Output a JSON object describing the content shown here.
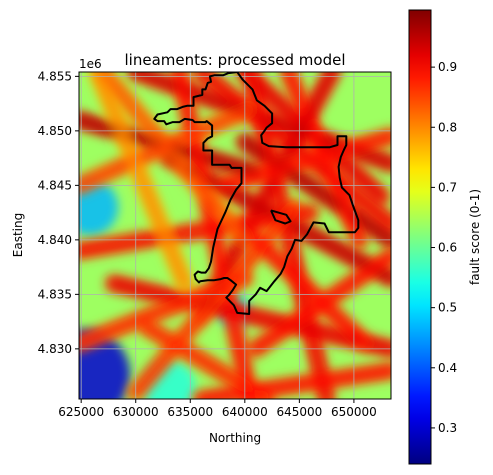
{
  "chart_data": {
    "type": "heatmap",
    "title": "lineaments: processed model",
    "xlabel": "Northing",
    "ylabel": "Easting",
    "y_offset_label": "1e6",
    "xlim": [
      624800,
      653400
    ],
    "ylim": [
      4825400,
      4855400
    ],
    "xticks": [
      625000,
      630000,
      635000,
      640000,
      645000,
      650000
    ],
    "xtick_labels": [
      "625000",
      "630000",
      "635000",
      "640000",
      "645000",
      "650000"
    ],
    "yticks": [
      4830000,
      4835000,
      4840000,
      4845000,
      4850000,
      4855000
    ],
    "ytick_labels": [
      "4.830",
      "4.835",
      "4.840",
      "4.845",
      "4.850",
      "4.855"
    ],
    "grid": true,
    "colormap": "jet",
    "colorbar": {
      "label": "fault score (0-1)",
      "range": [
        0.24,
        0.995
      ],
      "ticks": [
        0.3,
        0.4,
        0.5,
        0.6,
        0.7,
        0.8,
        0.9
      ],
      "tick_labels": [
        "0.3",
        "0.4",
        "0.5",
        "0.6",
        "0.7",
        "0.8",
        "0.9"
      ]
    },
    "background_field": {
      "base_score": 0.64,
      "low_zones": [
        {
          "x": 625300,
          "y": 4827600,
          "radius": 4200,
          "score": 0.3
        },
        {
          "x": 625800,
          "y": 4843000,
          "radius": 2600,
          "score": 0.47
        },
        {
          "x": 639000,
          "y": 4833500,
          "radius": 1600,
          "score": 0.52
        },
        {
          "x": 633000,
          "y": 4826500,
          "radius": 2500,
          "score": 0.55
        }
      ]
    },
    "lineaments": [
      {
        "x": [
          624800,
          641000
        ],
        "y": [
          4851000,
          4846200
        ],
        "score": 0.97
      },
      {
        "x": [
          630000,
          653400
        ],
        "y": [
          4855400,
          4847000
        ],
        "score": 0.95
      },
      {
        "x": [
          640000,
          652500
        ],
        "y": [
          4855400,
          4844000
        ],
        "score": 0.93
      },
      {
        "x": [
          633000,
          653400
        ],
        "y": [
          4847500,
          4836500
        ],
        "score": 0.96
      },
      {
        "x": [
          640000,
          653400
        ],
        "y": [
          4849000,
          4840000
        ],
        "score": 0.97
      },
      {
        "x": [
          636000,
          653400
        ],
        "y": [
          4855400,
          4841500
        ],
        "score": 0.92
      },
      {
        "x": [
          644000,
          650500
        ],
        "y": [
          4855400,
          4840000
        ],
        "score": 0.9
      },
      {
        "x": [
          648000,
          636000
        ],
        "y": [
          4855400,
          4833000
        ],
        "score": 0.94
      },
      {
        "x": [
          640500,
          647500
        ],
        "y": [
          4855400,
          4825400
        ],
        "score": 0.92
      },
      {
        "x": [
          634000,
          640500
        ],
        "y": [
          4855400,
          4825400
        ],
        "score": 0.9
      },
      {
        "x": [
          624800,
          646000
        ],
        "y": [
          4839000,
          4842500
        ],
        "score": 0.91
      },
      {
        "x": [
          628000,
          653400
        ],
        "y": [
          4836000,
          4830000
        ],
        "score": 0.93
      },
      {
        "x": [
          641000,
          653400
        ],
        "y": [
          4830000,
          4838500
        ],
        "score": 0.9
      },
      {
        "x": [
          624800,
          640000
        ],
        "y": [
          4830500,
          4836500
        ],
        "score": 0.88
      },
      {
        "x": [
          631000,
          642000
        ],
        "y": [
          4832000,
          4825400
        ],
        "score": 0.88
      },
      {
        "x": [
          636000,
          653400
        ],
        "y": [
          4825400,
          4828000
        ],
        "score": 0.9
      },
      {
        "x": [
          638000,
          653400
        ],
        "y": [
          4845000,
          4849500
        ],
        "score": 0.89
      },
      {
        "x": [
          627000,
          640000
        ],
        "y": [
          4855400,
          4840000
        ],
        "score": 0.84
      },
      {
        "x": [
          624800,
          640500
        ],
        "y": [
          4845000,
          4852000
        ],
        "score": 0.86
      },
      {
        "x": [
          630000,
          644500
        ],
        "y": [
          4826000,
          4843000
        ],
        "score": 0.87
      },
      {
        "x": [
          640000,
          651000
        ],
        "y": [
          4841000,
          4830500
        ],
        "score": 0.9
      },
      {
        "x": [
          626500,
          634500
        ],
        "y": [
          4855400,
          4836000
        ],
        "score": 0.8
      }
    ],
    "boundary": {
      "x": [
        639300,
        639800,
        640700,
        641100,
        641800,
        642500,
        642500,
        642000,
        641800,
        641500,
        641600,
        642200,
        643800,
        646300,
        647800,
        648500,
        648500,
        649300,
        649300,
        649100,
        648800,
        648600,
        648700,
        648900,
        649600,
        649900,
        650400,
        650400,
        650100,
        647700,
        647300,
        646300,
        645700,
        645200,
        644600,
        644300,
        643900,
        643600,
        643300,
        642700,
        642000,
        641400,
        641000,
        640400,
        640400,
        639300,
        639000,
        638700,
        638300,
        638600,
        638900,
        639200,
        638700,
        638400,
        638100,
        637800,
        637200,
        636600,
        635900,
        635800,
        635500,
        635400,
        635700,
        636000,
        636400,
        636700,
        636900,
        637100,
        637500,
        638200,
        638700,
        639200,
        639700,
        639700,
        639400,
        638800,
        638600,
        637000,
        637000,
        636200,
        636200,
        636600,
        637000,
        637000,
        636500,
        636400,
        635400,
        635200,
        634500,
        634000,
        633400,
        632800,
        632600,
        632000,
        631700,
        632000,
        632900,
        633200,
        633800,
        634300,
        634700,
        635300,
        635300,
        636100,
        636100,
        636400,
        636600,
        636900,
        636800,
        637200,
        637500,
        638000,
        638500,
        639300
      ],
      "y": [
        4855400,
        4854700,
        4853800,
        4852800,
        4852300,
        4851600,
        4850700,
        4850300,
        4850000,
        4849600,
        4848900,
        4848600,
        4848500,
        4848500,
        4848500,
        4848700,
        4849500,
        4849500,
        4848700,
        4848300,
        4847600,
        4846700,
        4845700,
        4844800,
        4844100,
        4843200,
        4841800,
        4841100,
        4840700,
        4840700,
        4841500,
        4841600,
        4840500,
        4839900,
        4840000,
        4839200,
        4838500,
        4837500,
        4836900,
        4836200,
        4835300,
        4835600,
        4835000,
        4834400,
        4833200,
        4833300,
        4834000,
        4834300,
        4834700,
        4835000,
        4835400,
        4835900,
        4836300,
        4836500,
        4836500,
        4836400,
        4836300,
        4836300,
        4836200,
        4836100,
        4836400,
        4836800,
        4837100,
        4837000,
        4837000,
        4837400,
        4838000,
        4839300,
        4841000,
        4842500,
        4843700,
        4844600,
        4845200,
        4846600,
        4846600,
        4846600,
        4846900,
        4846900,
        4848200,
        4848200,
        4848900,
        4849300,
        4849500,
        4850500,
        4850900,
        4850800,
        4850800,
        4851000,
        4851100,
        4850800,
        4850800,
        4850600,
        4850900,
        4850900,
        4851100,
        4851500,
        4851700,
        4852000,
        4852000,
        4852200,
        4852300,
        4852300,
        4853100,
        4853300,
        4853800,
        4853800,
        4854400,
        4854500,
        4855000,
        4855100,
        4855100,
        4855100,
        4855300,
        4855400
      ]
    },
    "island": {
      "x": [
        642400,
        643800,
        644200,
        643700,
        642800,
        642400
      ],
      "y": [
        4842700,
        4842300,
        4841700,
        4841500,
        4841800,
        4842700
      ]
    }
  }
}
